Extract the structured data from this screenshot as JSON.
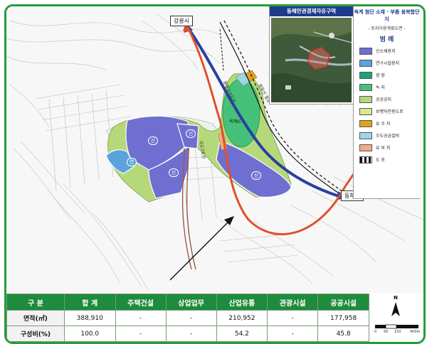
{
  "map": {
    "places": {
      "gangneung": "강릉시",
      "donghae": "동해시"
    },
    "road_labels": {
      "national_road": "국도7호선",
      "expressway": "동해고속도로",
      "railway": "영동선 철도",
      "ic": "옥계IC"
    },
    "parcel_codes": {
      "sin": "신",
      "yeon": "연"
    }
  },
  "inset": {
    "header": "동해안권경제자유구역",
    "site_name": "옥계 첨단 소재 · 부품 융복합단지",
    "map_type": "- 토지이용계획도면 -"
  },
  "legend": {
    "title": "범        례",
    "items": [
      {
        "label": "신소재용지",
        "color": "#6f6fd1"
      },
      {
        "label": "연구시설용지",
        "color": "#5aa3dc"
      },
      {
        "label": "광        장",
        "color": "#17a67c"
      },
      {
        "label": "녹        지",
        "color": "#46c17a"
      },
      {
        "label": "공공공지",
        "color": "#b5d97a"
      },
      {
        "label": "보행자전용도로",
        "color": "#d9e98a"
      },
      {
        "label": "유  수  지",
        "color": "#e1a21a"
      },
      {
        "label": "수도공급설비",
        "color": "#9dd6e8"
      },
      {
        "label": "유  보  지",
        "color": "#f2ab87"
      },
      {
        "label": "도        로",
        "color": "#ffffff"
      }
    ]
  },
  "table": {
    "headers": [
      "구  분",
      "합  계",
      "주택건설",
      "상업업무",
      "산업유통",
      "관광시설",
      "공공시설"
    ],
    "rows": [
      [
        "면적(㎡)",
        "388,910",
        "-",
        "-",
        "210,952",
        "-",
        "177,958"
      ],
      [
        "구성비(%)",
        "100.0",
        "-",
        "-",
        "54.2",
        "-",
        "45.8"
      ]
    ]
  },
  "scale": {
    "north": "N",
    "ticks": [
      "0",
      "50",
      "150",
      "400m"
    ]
  }
}
